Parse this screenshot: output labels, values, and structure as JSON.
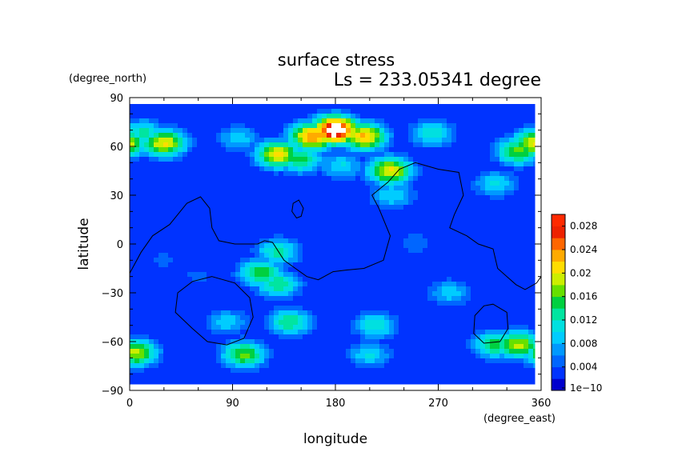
{
  "chart_data": {
    "type": "heatmap",
    "title": "surface stress",
    "subtitle": "Ls = 233.05341 degree",
    "xlabel": "longitude",
    "ylabel": "latitude",
    "x_units": "(degree_east)",
    "y_units": "(degree_north)",
    "xlim": [
      0,
      360
    ],
    "ylim": [
      -90,
      90
    ],
    "x_ticks": [
      "0",
      "90",
      "180",
      "270",
      "360"
    ],
    "y_ticks": [
      "90",
      "60",
      "30",
      "0",
      "−30",
      "−60",
      "−90"
    ],
    "colorbar": {
      "min": 0,
      "max": 0.03,
      "tick_labels": [
        "1e−10",
        "0.004",
        "0.008",
        "0.012",
        "0.016",
        "0.02",
        "0.024",
        "0.028"
      ],
      "tick_values": [
        0,
        0.004,
        0.008,
        0.012,
        0.016,
        0.02,
        0.024,
        0.028
      ],
      "colors": [
        "#0000cd",
        "#0033ff",
        "#0066ff",
        "#0099ff",
        "#00ccff",
        "#00e0e0",
        "#00e5a0",
        "#00d040",
        "#66e000",
        "#ccee00",
        "#ffdd00",
        "#ffaa00",
        "#ff6600",
        "#ee2200",
        "#ffffff"
      ]
    },
    "field_hotspots": [
      {
        "lon": 180,
        "lat": 70,
        "value": 0.034
      },
      {
        "lon": 160,
        "lat": 66,
        "value": 0.026
      },
      {
        "lon": 205,
        "lat": 66,
        "value": 0.024
      },
      {
        "lon": 130,
        "lat": 55,
        "value": 0.022
      },
      {
        "lon": 30,
        "lat": 62,
        "value": 0.022
      },
      {
        "lon": 355,
        "lat": 62,
        "value": 0.022
      },
      {
        "lon": 340,
        "lat": 57,
        "value": 0.018
      },
      {
        "lon": 228,
        "lat": 45,
        "value": 0.022
      },
      {
        "lon": 150,
        "lat": 52,
        "value": 0.016
      },
      {
        "lon": 185,
        "lat": 48,
        "value": 0.011
      },
      {
        "lon": 265,
        "lat": 68,
        "value": 0.013
      },
      {
        "lon": 230,
        "lat": 30,
        "value": 0.011
      },
      {
        "lon": 320,
        "lat": 37,
        "value": 0.011
      },
      {
        "lon": 95,
        "lat": 65,
        "value": 0.01
      },
      {
        "lon": 12,
        "lat": 68,
        "value": 0.014
      },
      {
        "lon": 130,
        "lat": -5,
        "value": 0.014
      },
      {
        "lon": 115,
        "lat": -18,
        "value": 0.017
      },
      {
        "lon": 130,
        "lat": -25,
        "value": 0.015
      },
      {
        "lon": 280,
        "lat": -30,
        "value": 0.01
      },
      {
        "lon": 140,
        "lat": -48,
        "value": 0.015
      },
      {
        "lon": 215,
        "lat": -50,
        "value": 0.013
      },
      {
        "lon": 85,
        "lat": -48,
        "value": 0.01
      },
      {
        "lon": 340,
        "lat": -62,
        "value": 0.02
      },
      {
        "lon": 320,
        "lat": -62,
        "value": 0.016
      },
      {
        "lon": 5,
        "lat": -67,
        "value": 0.02
      },
      {
        "lon": 100,
        "lat": -68,
        "value": 0.018
      },
      {
        "lon": 210,
        "lat": -68,
        "value": 0.011
      },
      {
        "lon": 30,
        "lat": -10,
        "value": 0.005
      },
      {
        "lon": 250,
        "lat": 0,
        "value": 0.006
      },
      {
        "lon": 60,
        "lat": -20,
        "value": 0.005
      }
    ],
    "contours": [
      {
        "name": "continent-outline-1",
        "points": [
          [
            0,
            -18
          ],
          [
            10,
            -5
          ],
          [
            20,
            5
          ],
          [
            35,
            12
          ],
          [
            50,
            25
          ],
          [
            62,
            29
          ],
          [
            70,
            22
          ],
          [
            72,
            10
          ],
          [
            78,
            2
          ],
          [
            92,
            0
          ],
          [
            112,
            0
          ],
          [
            118,
            2
          ],
          [
            125,
            1
          ],
          [
            135,
            -10
          ],
          [
            145,
            -15
          ],
          [
            155,
            -20
          ],
          [
            165,
            -22
          ],
          [
            178,
            -17
          ],
          [
            190,
            -16
          ],
          [
            205,
            -15
          ],
          [
            222,
            -10
          ],
          [
            228,
            5
          ],
          [
            218,
            22
          ],
          [
            212,
            30
          ],
          [
            226,
            38
          ],
          [
            236,
            46
          ],
          [
            250,
            50
          ],
          [
            270,
            46
          ],
          [
            288,
            44
          ],
          [
            292,
            30
          ],
          [
            284,
            18
          ],
          [
            280,
            10
          ],
          [
            295,
            5
          ],
          [
            305,
            0
          ],
          [
            318,
            -3
          ],
          [
            322,
            -15
          ],
          [
            330,
            -20
          ],
          [
            338,
            -25
          ],
          [
            346,
            -28
          ],
          [
            356,
            -24
          ],
          [
            360,
            -20
          ]
        ]
      },
      {
        "name": "island-outline",
        "closed": true,
        "points": [
          [
            143,
            25
          ],
          [
            148,
            27
          ],
          [
            152,
            22
          ],
          [
            150,
            17
          ],
          [
            146,
            16
          ],
          [
            142,
            20
          ]
        ]
      },
      {
        "name": "basin-outline-west",
        "closed": true,
        "points": [
          [
            72,
            -20
          ],
          [
            92,
            -24
          ],
          [
            105,
            -33
          ],
          [
            108,
            -45
          ],
          [
            100,
            -58
          ],
          [
            85,
            -62
          ],
          [
            68,
            -60
          ],
          [
            55,
            -52
          ],
          [
            40,
            -42
          ],
          [
            42,
            -30
          ],
          [
            55,
            -23
          ]
        ]
      },
      {
        "name": "basin-outline-east",
        "closed": true,
        "points": [
          [
            318,
            -37
          ],
          [
            330,
            -42
          ],
          [
            331,
            -52
          ],
          [
            324,
            -60
          ],
          [
            310,
            -61
          ],
          [
            301,
            -55
          ],
          [
            302,
            -44
          ],
          [
            310,
            -38
          ]
        ]
      }
    ]
  }
}
